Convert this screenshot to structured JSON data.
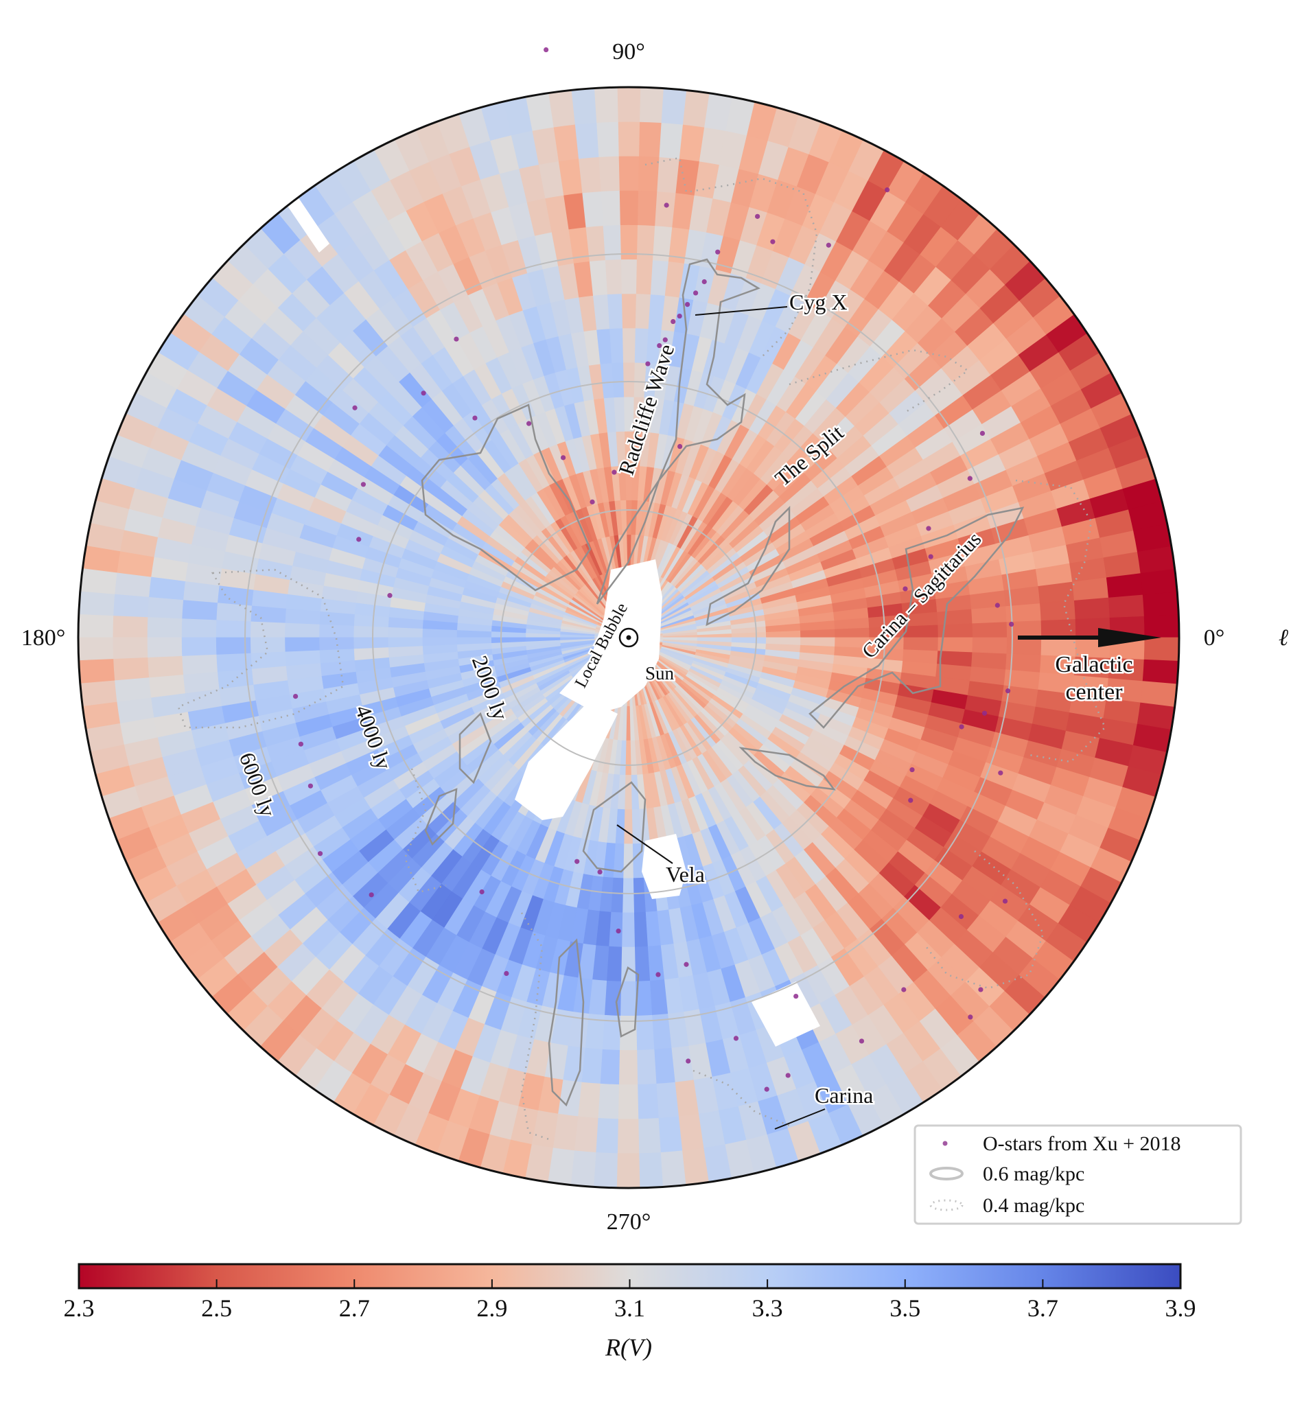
{
  "chart_data": {
    "type": "heatmap",
    "projection": "polar (top-down view of the Galactic plane, Sun at center)",
    "angular_axis": {
      "label": "ℓ",
      "tick_labels": [
        "0°",
        "90°",
        "180°",
        "270°"
      ],
      "direction": "counter-clockwise, 0° to the right"
    },
    "radial_rings": [
      "2000 ly",
      "4000 ly",
      "6000 ly"
    ],
    "colorbar": {
      "label": "R(V)",
      "range": [
        2.3,
        3.9
      ],
      "ticks": [
        "2.3",
        "2.5",
        "2.7",
        "2.9",
        "3.1",
        "3.3",
        "3.5",
        "3.7",
        "3.9"
      ],
      "colormap": "coolwarm (reversed)",
      "colors": {
        "low": "#b40426",
        "mid": "#dddcdc",
        "high": "#3b4cc0"
      }
    },
    "annotations": {
      "cyg_x": "Cyg X",
      "radcliffe_wave": "Radcliffe Wave",
      "the_split": "The Split",
      "carina_sagittarius": "Carina – Sagittarius",
      "local_bubble": "Local Bubble",
      "sun": "Sun",
      "vela": "Vela",
      "carina": "Carina",
      "galactic_center_line1": "Galactic",
      "galactic_center_line2": "center"
    },
    "legend": {
      "placement": "bottom-right",
      "entries": [
        {
          "label": "O-stars from Xu + 2018",
          "marker": "dot",
          "color": "#8e2a8e"
        },
        {
          "label": "0.6 mag/kpc",
          "marker": "solid contour",
          "color": "#999999"
        },
        {
          "label": "0.4 mag/kpc",
          "marker": "dotted contour",
          "color": "#aaaaaa"
        }
      ]
    },
    "o_stars_l_deg_dist_ly": [
      [
        80,
        5300
      ],
      [
        81,
        5100
      ],
      [
        79,
        5500
      ],
      [
        82,
        5000
      ],
      [
        78,
        5700
      ],
      [
        83,
        4700
      ],
      [
        77,
        6200
      ],
      [
        85,
        6800
      ],
      [
        73,
        6900
      ],
      [
        70,
        6600
      ],
      [
        86,
        4300
      ],
      [
        84,
        4600
      ],
      [
        75,
        3100
      ],
      [
        110,
        3000
      ],
      [
        105,
        2200
      ],
      [
        95,
        2600
      ],
      [
        115,
        3700
      ],
      [
        125,
        4200
      ],
      [
        130,
        5000
      ],
      [
        120,
        5400
      ],
      [
        98,
        9300
      ],
      [
        60,
        8100
      ],
      [
        63,
        6900
      ],
      [
        30,
        6400
      ],
      [
        25,
        5900
      ],
      [
        20,
        5000
      ],
      [
        15,
        4900
      ],
      [
        10,
        4400
      ],
      [
        5,
        5800
      ],
      [
        2,
        6000
      ],
      [
        352,
        6000
      ],
      [
        348,
        5700
      ],
      [
        345,
        5400
      ],
      [
        340,
        6200
      ],
      [
        335,
        4900
      ],
      [
        330,
        5100
      ],
      [
        325,
        7200
      ],
      [
        320,
        6800
      ],
      [
        315,
        7800
      ],
      [
        312,
        8000
      ],
      [
        308,
        7000
      ],
      [
        300,
        7300
      ],
      [
        295,
        6200
      ],
      [
        290,
        7300
      ],
      [
        287,
        7400
      ],
      [
        285,
        6500
      ],
      [
        280,
        5200
      ],
      [
        278,
        6700
      ],
      [
        275,
        5300
      ],
      [
        268,
        4600
      ],
      [
        263,
        3700
      ],
      [
        257,
        3600
      ],
      [
        250,
        5600
      ],
      [
        240,
        4600
      ],
      [
        225,
        5700
      ],
      [
        215,
        5900
      ],
      [
        205,
        5500
      ],
      [
        198,
        5400
      ],
      [
        190,
        5300
      ],
      [
        170,
        3800
      ],
      [
        160,
        4500
      ],
      [
        150,
        4800
      ],
      [
        140,
        5600
      ]
    ]
  }
}
